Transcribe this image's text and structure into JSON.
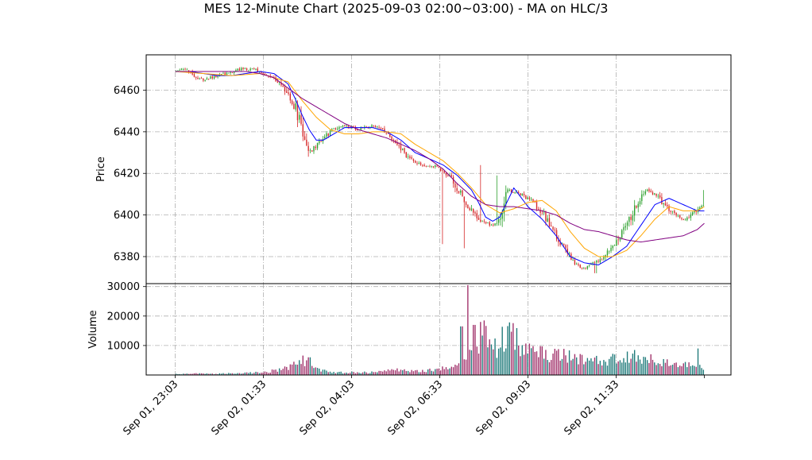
{
  "chart_data": {
    "type": "candlestick",
    "title": "MES 12-Minute Chart (2025-09-03 02:00~03:00) - MA on HLC/3",
    "price_panel": {
      "ylabel": "Price",
      "ylim": [
        6367,
        6477
      ],
      "yticks": [
        6380,
        6400,
        6420,
        6440,
        6460
      ],
      "grid": true
    },
    "volume_panel": {
      "ylabel": "Volume",
      "ylim": [
        0,
        31000
      ],
      "yticks": [
        10000,
        20000,
        30000
      ],
      "grid": true
    },
    "x_axis": {
      "tick_labels": [
        "Sep 01, 23:03",
        "Sep 02, 01:33",
        "Sep 02, 04:03",
        "Sep 02, 06:33",
        "Sep 02, 09:03",
        "Sep 02, 11:33"
      ],
      "tick_positions": [
        0,
        12.5,
        25,
        37.5,
        50,
        62.5
      ],
      "n_bars": 75
    },
    "candle_colors": {
      "up": "#2ca02c",
      "down": "#d62728"
    },
    "volume_colors": {
      "up": "#1f7a7a",
      "down": "#a0306a"
    },
    "price_anchors": {
      "x": [
        0,
        1,
        2,
        3,
        4,
        5,
        6,
        7,
        8,
        9,
        10,
        11,
        12,
        13,
        14,
        15,
        16,
        17,
        18,
        19,
        20,
        21,
        22,
        23,
        24,
        25,
        26,
        27,
        28,
        29,
        30,
        31,
        32,
        33,
        34,
        35,
        36,
        37,
        38,
        39,
        40,
        41,
        42,
        43,
        44,
        45,
        46,
        47,
        48,
        49,
        50,
        51,
        52,
        53,
        54,
        55,
        56,
        57,
        58,
        59,
        60,
        61,
        62,
        63,
        64,
        65,
        66,
        67,
        68,
        69,
        70,
        71,
        72,
        73,
        74,
        75
      ],
      "close": [
        6469,
        6470,
        6469,
        6466,
        6465,
        6466,
        6467,
        6468,
        6469,
        6470,
        6470,
        6470,
        6469,
        6467,
        6465,
        6462,
        6458,
        6452,
        6440,
        6430,
        6433,
        6437,
        6440,
        6442,
        6443,
        6442,
        6441,
        6442,
        6443,
        6442,
        6439,
        6436,
        6432,
        6428,
        6425,
        6424,
        6424,
        6423,
        6421,
        6418,
        6413,
        6407,
        6402,
        6398,
        6396,
        6395,
        6397,
        6412,
        6411,
        6410,
        6408,
        6405,
        6401,
        6396,
        6390,
        6385,
        6380,
        6376,
        6374,
        6376,
        6378,
        6381,
        6384,
        6390,
        6395,
        6402,
        6409,
        6412,
        6410,
        6406,
        6402,
        6400,
        6398,
        6399,
        6403,
        6405
      ],
      "volume": [
        300,
        350,
        400,
        500,
        450,
        400,
        450,
        500,
        550,
        600,
        700,
        800,
        900,
        1100,
        1500,
        2000,
        2800,
        3800,
        5500,
        3000,
        2200,
        1600,
        1200,
        1000,
        900,
        900,
        800,
        900,
        1000,
        1200,
        1500,
        1800,
        1600,
        1400,
        1300,
        1400,
        1600,
        1800,
        2200,
        2800,
        3500,
        5000,
        7000,
        10000,
        16000,
        9000,
        11000,
        16000,
        14000,
        11000,
        9000,
        8000,
        7500,
        7000,
        7000,
        7000,
        6500,
        6000,
        5500,
        5500,
        5000,
        5500,
        6000,
        6500,
        6000,
        6500,
        7000,
        6000,
        5000,
        4500,
        4000,
        3800,
        3500,
        3200,
        3000,
        3000
      ]
    },
    "price_spikes": [
      {
        "x": 18.9,
        "low": 6428
      },
      {
        "x": 37.9,
        "low": 6386
      },
      {
        "x": 41.0,
        "low": 6384
      },
      {
        "x": 43.3,
        "high": 6424
      },
      {
        "x": 45.5,
        "high": 6419
      },
      {
        "x": 59.6,
        "low": 6372
      },
      {
        "x": 75.0,
        "high": 6412
      }
    ],
    "volume_spikes": [
      {
        "x": 19.0,
        "value": 6000
      },
      {
        "x": 40.6,
        "value": 16500
      },
      {
        "x": 41.5,
        "value": 30500
      },
      {
        "x": 42.4,
        "value": 17000
      },
      {
        "x": 43.2,
        "value": 18000
      },
      {
        "x": 44.0,
        "value": 13000
      },
      {
        "x": 74.1,
        "value": 9000
      }
    ],
    "moving_averages": [
      {
        "color": "#0000ff",
        "x": [
          0,
          2,
          4,
          6,
          8,
          10,
          12,
          14,
          16,
          17,
          18,
          19,
          20,
          21,
          22,
          24,
          26,
          28,
          30,
          32,
          34,
          36,
          38,
          40,
          42,
          43,
          44,
          45,
          46,
          47,
          48,
          50,
          52,
          54,
          56,
          58,
          60,
          62,
          64,
          66,
          68,
          70,
          72,
          74,
          75
        ],
        "y": [
          6469,
          6469,
          6468,
          6467,
          6467,
          6468,
          6469,
          6468,
          6463,
          6456,
          6448,
          6441,
          6436,
          6436,
          6438,
          6442,
          6442,
          6442,
          6440,
          6436,
          6430,
          6427,
          6424,
          6419,
          6412,
          6406,
          6399,
          6397,
          6399,
          6406,
          6413,
          6404,
          6398,
          6390,
          6380,
          6377,
          6376,
          6380,
          6385,
          6395,
          6405,
          6408,
          6405,
          6402,
          6402
        ]
      },
      {
        "color": "#ffa500",
        "x": [
          0,
          4,
          8,
          12,
          16,
          18,
          20,
          22,
          24,
          26,
          28,
          30,
          32,
          34,
          36,
          38,
          40,
          42,
          44,
          46,
          48,
          50,
          52,
          54,
          56,
          58,
          60,
          62,
          64,
          66,
          68,
          70,
          72,
          74,
          75
        ],
        "y": [
          6469,
          6468,
          6467,
          6468,
          6464,
          6455,
          6447,
          6441,
          6439,
          6439,
          6440,
          6440,
          6439,
          6434,
          6430,
          6426,
          6420,
          6413,
          6405,
          6401,
          6403,
          6406,
          6407,
          6402,
          6392,
          6384,
          6380,
          6380,
          6383,
          6390,
          6398,
          6404,
          6402,
          6402,
          6404
        ]
      },
      {
        "color": "#800080",
        "x": [
          0,
          8,
          10,
          12,
          14,
          16,
          18,
          20,
          22,
          24,
          26,
          28,
          30,
          32,
          34,
          36,
          38,
          40,
          42,
          44,
          46,
          48,
          50,
          52,
          54,
          56,
          58,
          60,
          62,
          64,
          66,
          68,
          70,
          72,
          74,
          75
        ],
        "y": [
          6469,
          6469,
          6469,
          6468,
          6466,
          6461,
          6456,
          6452,
          6448,
          6444,
          6441,
          6439,
          6437,
          6434,
          6431,
          6427,
          6422,
          6415,
          6409,
          6405,
          6404,
          6404,
          6403,
          6402,
          6400,
          6396,
          6393,
          6392,
          6390,
          6388,
          6387,
          6388,
          6389,
          6390,
          6393,
          6396
        ]
      }
    ]
  }
}
